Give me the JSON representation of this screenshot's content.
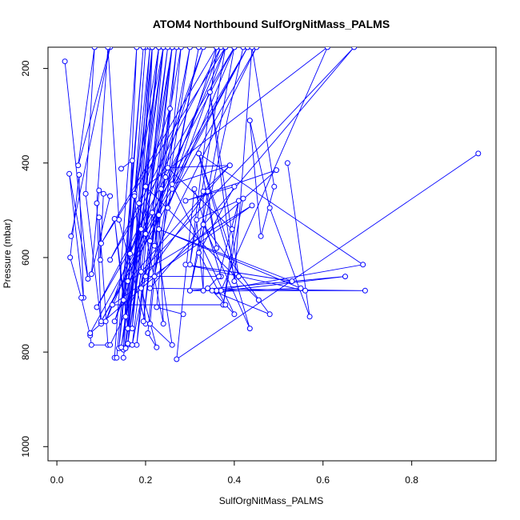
{
  "chart_data": {
    "type": "line",
    "title": "ATOM4 Northbound SulfOrgNitMass_PALMS",
    "xlabel": "SulfOrgNitMass_PALMS",
    "ylabel": "Pressure (mbar)",
    "xlim": [
      -0.02,
      0.99
    ],
    "ylim": [
      1030,
      155
    ],
    "y_reversed": true,
    "x_ticks": [
      0.0,
      0.2,
      0.4,
      0.6,
      0.8
    ],
    "x_tick_labels": [
      "0.0",
      "0.2",
      "0.4",
      "0.6",
      "0.8"
    ],
    "y_ticks": [
      200,
      400,
      600,
      800,
      1000
    ],
    "y_tick_labels": [
      "200",
      "400",
      "600",
      "800",
      "1000"
    ],
    "grid": false,
    "legend": "none",
    "color": "#0000ff",
    "marker": "open-circle",
    "series": [
      {
        "x": [
          0.018,
          0.07,
          0.028,
          0.06,
          0.05,
          0.03,
          0.055,
          0.075,
          0.078,
          0.115,
          0.095,
          0.098,
          0.105,
          0.12,
          0.078,
          0.095
        ],
        "y": [
          185,
          645,
          423,
          685,
          425,
          600,
          685,
          765,
          785,
          785,
          515,
          605,
          465,
          470,
          635,
          458
        ]
      },
      {
        "x": [
          0.032,
          0.12,
          0.048,
          0.085,
          0.065,
          0.1,
          0.09,
          0.115,
          0.14,
          0.2,
          0.175,
          0.15,
          0.13,
          0.16,
          0.17,
          0.145
        ],
        "y": [
          555,
          155,
          405,
          155,
          465,
          740,
          485,
          155,
          520,
          740,
          465,
          690,
          518,
          750,
          395,
          412
        ]
      },
      {
        "x": [
          0.13,
          0.18,
          0.15,
          0.2,
          0.155,
          0.19,
          0.165,
          0.215,
          0.2,
          0.24,
          0.23,
          0.21,
          0.185,
          0.255,
          0.22,
          0.245,
          0.19,
          0.225,
          0.205,
          0.235
        ],
        "y": [
          812,
          155,
          795,
          155,
          725,
          540,
          592,
          155,
          550,
          740,
          510,
          565,
          485,
          285,
          575,
          430,
          665,
          790,
          760,
          455
        ]
      },
      {
        "x": [
          0.135,
          0.195,
          0.14,
          0.21,
          0.16,
          0.215,
          0.17,
          0.23,
          0.175,
          0.24,
          0.18,
          0.26,
          0.195,
          0.27,
          0.21,
          0.26,
          0.215,
          0.28,
          0.225,
          0.285
        ],
        "y": [
          812,
          155,
          792,
          155,
          785,
          155,
          750,
          155,
          470,
          155,
          785,
          155,
          735,
          155,
          740,
          785,
          505,
          155,
          705,
          720
        ]
      },
      {
        "x": [
          0.15,
          0.23,
          0.155,
          0.24,
          0.145,
          0.26,
          0.16,
          0.25,
          0.17,
          0.3,
          0.22,
          0.32,
          0.26,
          0.36,
          0.3,
          0.38,
          0.25,
          0.4,
          0.3,
          0.42
        ],
        "y": [
          812,
          155,
          792,
          155,
          790,
          155,
          782,
          155,
          785,
          155,
          640,
          155,
          455,
          155,
          615,
          155,
          495,
          155,
          670,
          155
        ]
      },
      {
        "x": [
          0.12,
          0.45,
          0.1,
          0.43,
          0.075,
          0.43,
          0.09,
          0.4,
          0.12,
          0.37,
          0.13,
          0.33,
          0.11,
          0.38,
          0.1,
          0.36
        ],
        "y": [
          785,
          155,
          735,
          155,
          760,
          155,
          705,
          155,
          605,
          155,
          735,
          155,
          735,
          155,
          570,
          155
        ]
      },
      {
        "x": [
          0.95,
          0.27,
          0.31,
          0.37,
          0.2,
          0.34,
          0.36,
          0.32,
          0.41,
          0.345,
          0.4,
          0.44,
          0.49,
          0.46,
          0.435,
          0.48,
          0.57,
          0.52
        ],
        "y": [
          380,
          815,
          455,
          640,
          640,
          460,
          580,
          380,
          640,
          250,
          650,
          155,
          450,
          555,
          310,
          495,
          725,
          400
        ]
      },
      {
        "x": [
          0.19,
          0.67,
          0.21,
          0.695,
          0.3,
          0.65,
          0.36,
          0.55,
          0.23,
          0.53,
          0.29,
          0.56,
          0.37,
          0.61,
          0.2,
          0.455
        ],
        "y": [
          630,
          155,
          665,
          670,
          670,
          640,
          672,
          665,
          540,
          650,
          615,
          670,
          670,
          155,
          450,
          690
        ]
      },
      {
        "x": [
          0.36,
          0.69,
          0.32,
          0.435,
          0.33,
          0.48,
          0.35,
          0.4,
          0.26,
          0.39,
          0.33,
          0.33,
          0.315,
          0.42,
          0.375,
          0.41,
          0.365,
          0.34
        ],
        "y": [
          670,
          615,
          380,
          750,
          530,
          720,
          670,
          720,
          445,
          405,
          460,
          670,
          520,
          475,
          700,
          480,
          640,
          665
        ]
      },
      {
        "x": [
          0.075,
          0.495,
          0.29,
          0.4,
          0.32,
          0.38,
          0.125,
          0.44,
          0.16,
          0.39,
          0.25,
          0.395
        ],
        "y": [
          760,
          415,
          480,
          450,
          590,
          700,
          700,
          490,
          650,
          405,
          410,
          540
        ]
      }
    ]
  }
}
